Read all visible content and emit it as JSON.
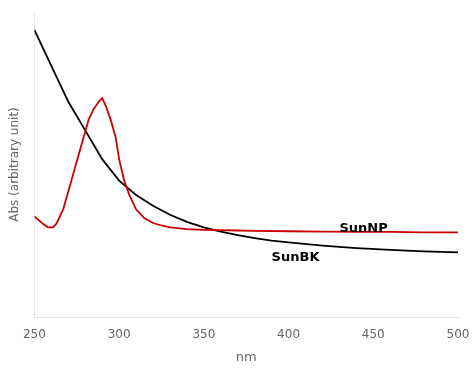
{
  "chart_data": {
    "type": "line",
    "xlabel": "nm",
    "ylabel": "Abs (arbitrary unit)",
    "xlim": [
      250,
      500
    ],
    "ylim": [
      0,
      0.85
    ],
    "xticks": [
      250,
      300,
      350,
      400,
      450,
      500
    ],
    "yticks": [],
    "tick_labels": "x",
    "grid": false,
    "series": [
      {
        "name": "SunNP",
        "color": "#cc0000",
        "x": [
          250,
          255,
          258,
          261,
          263,
          265,
          267,
          270,
          273,
          276,
          279,
          282,
          285,
          288,
          290,
          292,
          295,
          298,
          300,
          303,
          306,
          310,
          315,
          320,
          325,
          330,
          340,
          350,
          360,
          370,
          380,
          400,
          420,
          440,
          460,
          480,
          500
        ],
        "values": [
          0.28,
          0.26,
          0.25,
          0.25,
          0.26,
          0.28,
          0.3,
          0.35,
          0.4,
          0.45,
          0.5,
          0.55,
          0.58,
          0.6,
          0.61,
          0.59,
          0.55,
          0.5,
          0.44,
          0.38,
          0.34,
          0.3,
          0.275,
          0.262,
          0.255,
          0.25,
          0.245,
          0.243,
          0.242,
          0.241,
          0.24,
          0.239,
          0.238,
          0.237,
          0.237,
          0.236,
          0.236
        ]
      },
      {
        "name": "SunBK",
        "color": "#000000",
        "x": [
          250,
          255,
          260,
          265,
          270,
          275,
          280,
          285,
          290,
          295,
          300,
          310,
          320,
          330,
          340,
          350,
          360,
          370,
          380,
          390,
          400,
          420,
          440,
          460,
          480,
          500
        ],
        "values": [
          0.8,
          0.75,
          0.7,
          0.65,
          0.6,
          0.56,
          0.52,
          0.48,
          0.44,
          0.41,
          0.38,
          0.34,
          0.31,
          0.285,
          0.265,
          0.25,
          0.238,
          0.228,
          0.22,
          0.213,
          0.208,
          0.199,
          0.192,
          0.187,
          0.183,
          0.18
        ]
      }
    ],
    "annotations": [
      {
        "text": "SunNP",
        "x": 430,
        "y": 0.245
      },
      {
        "text": "SunBK",
        "x": 390,
        "y": 0.165
      }
    ]
  }
}
